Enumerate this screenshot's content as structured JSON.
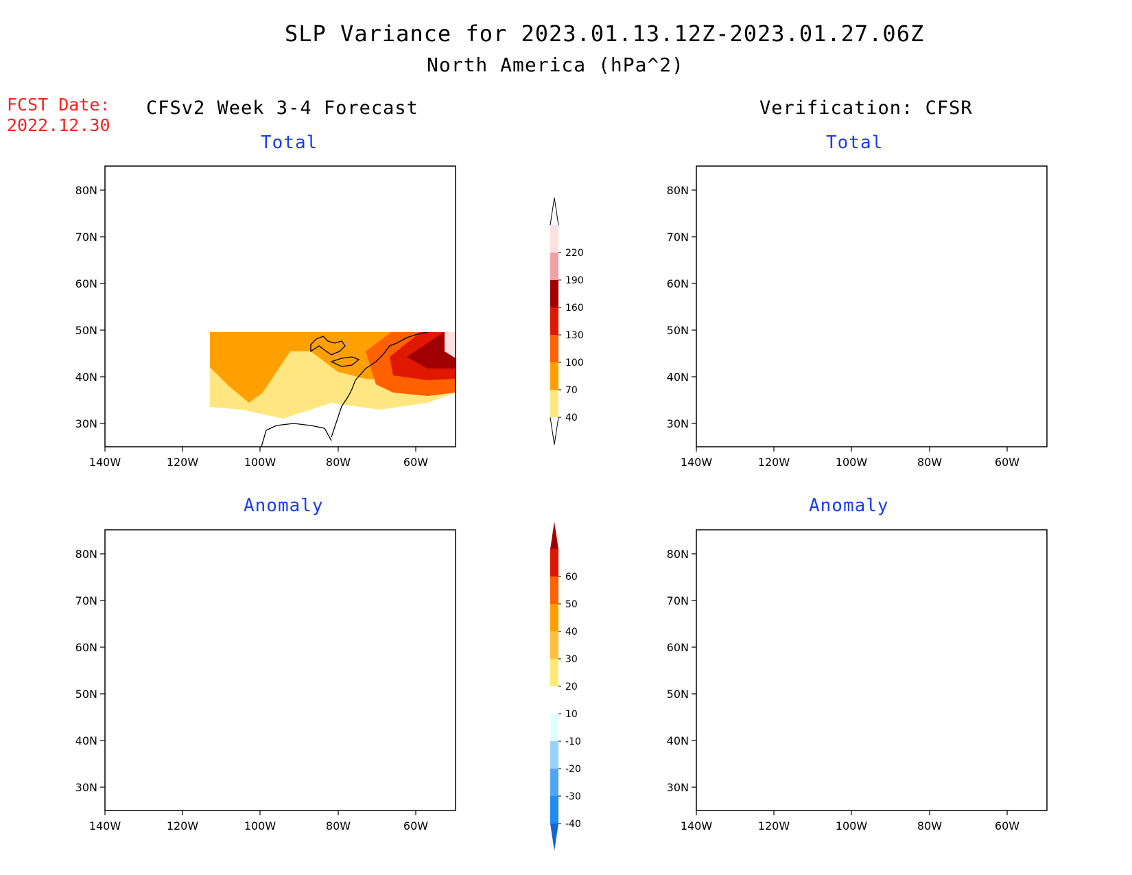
{
  "title": "SLP Variance for 2023.01.13.12Z-2023.01.27.06Z",
  "subtitle": "North America (hPa^2)",
  "fcst_date_label": "FCST Date:",
  "fcst_date_value": "2022.12.30",
  "forecast_header": "CFSv2 Week 3-4 Forecast",
  "verification_header": "Verification: CFSR",
  "axes": {
    "lon_ticks": [
      "140W",
      "120W",
      "100W",
      "80W",
      "60W"
    ],
    "lat_ticks": [
      "80N",
      "70N",
      "60N",
      "50N",
      "40N",
      "30N"
    ]
  },
  "panels": [
    {
      "id": "forecast-total",
      "title": "Total"
    },
    {
      "id": "verification-total",
      "title": "Total"
    },
    {
      "id": "forecast-anomaly",
      "title": "Anomaly"
    },
    {
      "id": "verification-anomaly",
      "title": "Anomaly"
    }
  ],
  "total_colorbar": {
    "levels": [
      "40",
      "70",
      "100",
      "130",
      "160",
      "190",
      "220"
    ],
    "colors": [
      "#ffe680",
      "#ffa000",
      "#ff6000",
      "#e01800",
      "#a00000",
      "#f0a0a8",
      "#ffe0e0"
    ]
  },
  "anomaly_colorbar": {
    "levels": [
      "-40",
      "-30",
      "-20",
      "-10",
      "10",
      "20",
      "30",
      "40",
      "50",
      "60"
    ],
    "colors": [
      "#1464d2",
      "#1e8cf0",
      "#50a5f5",
      "#96d2fa",
      "#e1ffff",
      "#ffffff",
      "#ffe878",
      "#ffc03c",
      "#ffa000",
      "#ff6000",
      "#e11400",
      "#a50000"
    ]
  }
}
